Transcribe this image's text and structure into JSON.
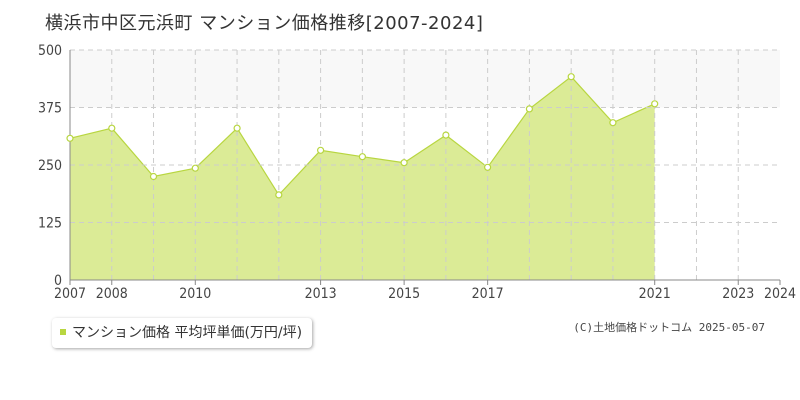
{
  "title": "横浜市中区元浜町 マンション価格推移[2007-2024]",
  "legend": {
    "label": "マンション価格 平均坪単価(万円/坪)"
  },
  "copyright": "(C)土地価格ドットコム 2025-05-07",
  "colors": {
    "fill": "#dbeb96",
    "line": "#b8d640",
    "marker_fill": "#ffffff",
    "band": "#f8f8f8",
    "grid": "#cccccc",
    "axis": "#888888"
  },
  "chart_data": {
    "type": "area",
    "title": "横浜市中区元浜町 マンション価格推移[2007-2024]",
    "xlabel": "",
    "ylabel": "",
    "xlim": [
      2007,
      2024
    ],
    "ylim": [
      0,
      500
    ],
    "yticks": [
      0,
      125,
      250,
      375,
      500
    ],
    "xtick_labels": [
      "2007",
      "2008",
      "2010",
      "2013",
      "2015",
      "2017",
      "2021",
      "2023",
      "2024"
    ],
    "grid": true,
    "legend_position": "bottom-left",
    "series": [
      {
        "name": "マンション価格 平均坪単価(万円/坪)",
        "x": [
          2007,
          2008,
          2009,
          2010,
          2011,
          2012,
          2013,
          2014,
          2015,
          2016,
          2017,
          2018,
          2019,
          2020,
          2021,
          2022,
          2023,
          2024
        ],
        "y": [
          308,
          330,
          225,
          243,
          330,
          185,
          282,
          268,
          255,
          315,
          245,
          372,
          442,
          342,
          383,
          null,
          null,
          null
        ]
      }
    ]
  }
}
